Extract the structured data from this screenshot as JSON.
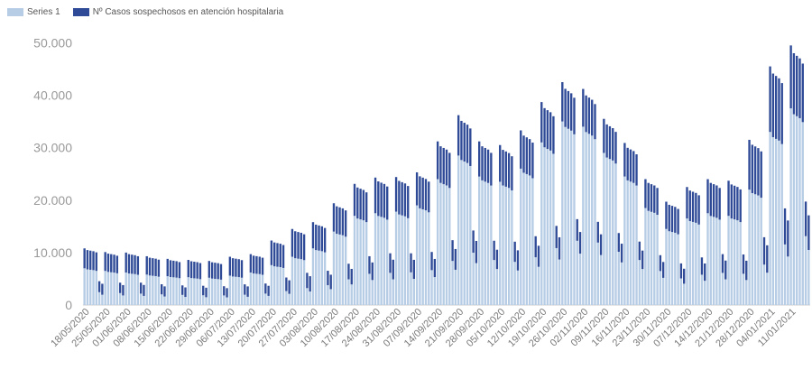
{
  "colors": {
    "series1": "#b7cde6",
    "series2": "#2f4b97",
    "tick": "#999999",
    "baseline": "#cccccc"
  },
  "chart_data": {
    "type": "bar",
    "stacked": true,
    "legend_position": "top-left",
    "grid": false,
    "ylim": [
      0,
      53000
    ],
    "y_ticks": [
      "0",
      "10.000",
      "20.000",
      "30.000",
      "40.000",
      "50.000"
    ],
    "x_tick_labels": [
      "18/05/2020",
      "25/05/2020",
      "01/06/2020",
      "08/06/2020",
      "15/06/2020",
      "22/06/2020",
      "29/06/2020",
      "06/07/2020",
      "13/07/2020",
      "20/07/2020",
      "27/07/2020",
      "03/08/2020",
      "10/08/2020",
      "17/08/2020",
      "24/08/2020",
      "31/08/2020",
      "07/09/2020",
      "14/09/2020",
      "21/09/2020",
      "28/09/2020",
      "05/10/2020",
      "12/10/2020",
      "19/10/2020",
      "26/10/2020",
      "02/11/2020",
      "09/11/2020",
      "16/11/2020",
      "23/11/2020",
      "30/11/2020",
      "07/12/2020",
      "14/12/2020",
      "21/12/2020",
      "28/12/2020",
      "04/01/2021",
      "11/01/2021"
    ],
    "series": [
      {
        "name": "Series 1",
        "weekly_peak": [
          7000,
          6500,
          6200,
          5800,
          5500,
          5300,
          5200,
          5600,
          6200,
          7600,
          9200,
          10800,
          14000,
          17000,
          17500,
          17800,
          19000,
          24000,
          28500,
          24500,
          23500,
          26000,
          31000,
          35000,
          34000,
          29000,
          24500,
          18500,
          14500,
          16500,
          17500,
          17000,
          22000,
          33000,
          37500
        ]
      },
      {
        "name": "Nº Casos sospechosos en atención hospitalaria",
        "weekly_peak": [
          3800,
          3600,
          3800,
          3500,
          3300,
          3300,
          3200,
          3600,
          3500,
          4700,
          5300,
          5000,
          5400,
          6100,
          6800,
          6600,
          6300,
          7200,
          7700,
          6700,
          7000,
          7300,
          7700,
          7500,
          7200,
          6500,
          6400,
          5500,
          5200,
          6000,
          6500,
          6700,
          9500,
          12500,
          12000
        ]
      }
    ]
  },
  "legend": {
    "items": [
      {
        "label": "Series 1"
      },
      {
        "label": "Nº Casos sospechosos en atención hospitalaria"
      }
    ]
  }
}
